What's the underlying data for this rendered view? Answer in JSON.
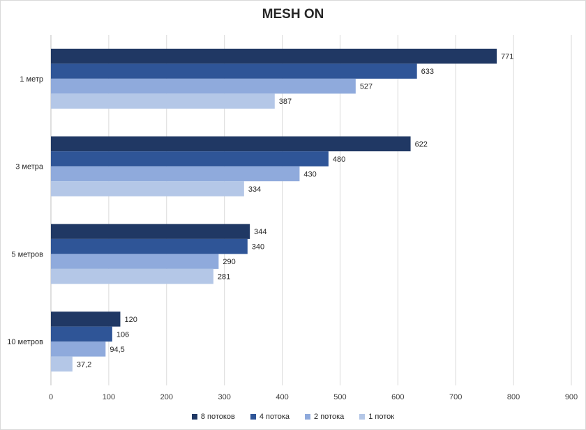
{
  "chart_data": {
    "type": "bar",
    "orientation": "horizontal",
    "title": "MESH ON",
    "categories": [
      "1 метр",
      "3 метра",
      "5 метров",
      "10 метров"
    ],
    "series": [
      {
        "name": "8 потоков",
        "color": "#203864",
        "values": [
          771,
          622,
          344,
          120
        ],
        "labels": [
          "771",
          "622",
          "344",
          "120"
        ]
      },
      {
        "name": "4 потока",
        "color": "#2f5597",
        "values": [
          633,
          480,
          340,
          106
        ],
        "labels": [
          "633",
          "480",
          "340",
          "106"
        ]
      },
      {
        "name": "2 потока",
        "color": "#8faadc",
        "values": [
          527,
          430,
          290,
          94.5
        ],
        "labels": [
          "527",
          "430",
          "290",
          "94,5"
        ]
      },
      {
        "name": "1 поток",
        "color": "#b4c7e7",
        "values": [
          387,
          334,
          281,
          37.2
        ],
        "labels": [
          "387",
          "334",
          "281",
          "37,2"
        ]
      }
    ],
    "xlim": [
      0,
      900
    ],
    "xticks": [
      0,
      100,
      200,
      300,
      400,
      500,
      600,
      700,
      800,
      900
    ],
    "xtick_labels": [
      "0",
      "100",
      "200",
      "300",
      "400",
      "500",
      "600",
      "700",
      "800",
      "900"
    ],
    "grid": true,
    "legend_position": "bottom"
  }
}
